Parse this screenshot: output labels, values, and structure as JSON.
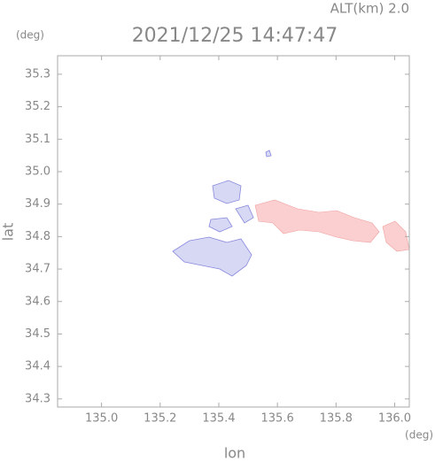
{
  "chart_data": {
    "type": "image",
    "altitude_label": "ALT(km) 2.0",
    "title": "2021/12/25 14:47:47",
    "y_unit": "(deg)",
    "x_unit": "(deg)",
    "xlabel": "lon",
    "ylabel": "lat",
    "xlim": [
      134.85,
      136.05
    ],
    "ylim": [
      34.275,
      35.357
    ],
    "xticks": [
      {
        "value": 135.0,
        "label": "135.0"
      },
      135.2,
      135.4,
      135.6,
      135.8,
      {
        "value": 136.0,
        "label": "136.0"
      }
    ],
    "yticks": [
      34.3,
      34.4,
      34.5,
      34.6,
      34.7,
      34.8,
      34.9,
      {
        "value": 35.0,
        "label": "35.0"
      },
      35.1,
      35.2,
      35.3
    ]
  }
}
